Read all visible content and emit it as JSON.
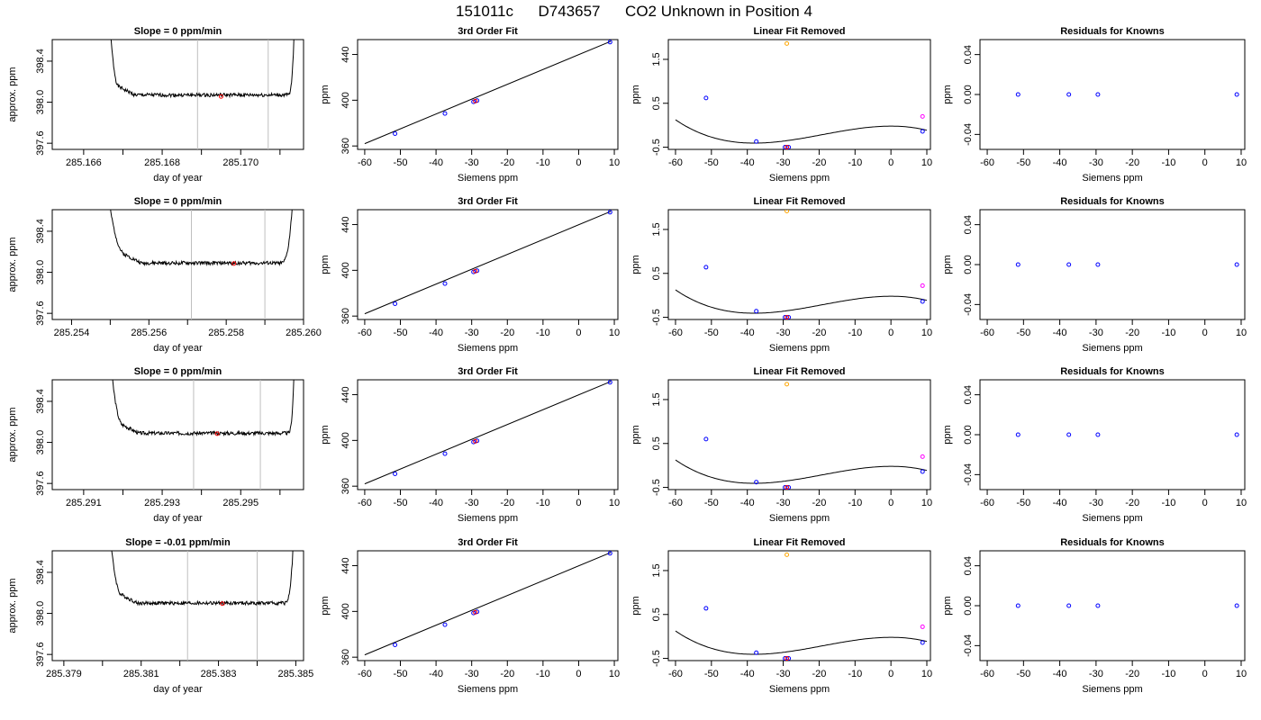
{
  "figure": {
    "title_parts": [
      "151011c",
      "D743657",
      "CO2 Unknown in Position  4"
    ],
    "colors": {
      "known": "#0000ff",
      "unknown": "#ff0000",
      "ref_low": "#ffa500",
      "ref_high": "#ff00ff",
      "line": "#000000",
      "marker_line": "#bebebe"
    }
  },
  "chart_data": [
    {
      "row": 0,
      "col": 0,
      "type": "line",
      "title": "Slope =  0  ppm/min",
      "xlabel": "day of year",
      "ylabel": "approx. ppm",
      "xlim": [
        285.1652,
        285.1716
      ],
      "ylim": [
        397.54,
        398.61
      ],
      "xticks": [
        285.166,
        285.167,
        285.168,
        285.169,
        285.17,
        285.171
      ],
      "xtick_labels": [
        "285.166",
        "",
        "285.168",
        "",
        "285.170",
        ""
      ],
      "yticks": [
        397.6,
        398.0,
        398.4
      ],
      "ytick_labels": [
        "397.6",
        "398.0",
        "398.4"
      ],
      "x_start": 285.1666,
      "x_end": 285.1714,
      "plateau_start": 285.1669,
      "plateau_end": 285.1712,
      "level": 398.07,
      "seed": 1,
      "markers_v": [
        285.1689,
        285.1707
      ],
      "highlight": {
        "x": 285.1695,
        "y": 398.055
      }
    },
    {
      "row": 0,
      "col": 1,
      "type": "line",
      "title": "3rd Order Fit",
      "xlabel": "Siemens ppm",
      "ylabel": "ppm",
      "xlim": [
        -62,
        11
      ],
      "ylim": [
        357,
        453
      ],
      "xticks": [
        -60,
        -50,
        -40,
        -30,
        -20,
        -10,
        0,
        10
      ],
      "yticks": [
        360,
        400,
        440
      ],
      "fit_line": [
        [
          -60,
          362
        ],
        [
          9,
          451.5
        ]
      ],
      "points": [
        {
          "x": -51.5,
          "y": 370.8,
          "c": "known"
        },
        {
          "x": -37.5,
          "y": 388.4,
          "c": "known"
        },
        {
          "x": -29.5,
          "y": 398.6,
          "c": "known"
        },
        {
          "x": -28.5,
          "y": 399.7,
          "c": "known"
        },
        {
          "x": -29,
          "y": 399.2,
          "c": "unknown"
        },
        {
          "x": 8.8,
          "y": 450.8,
          "c": "known"
        }
      ]
    },
    {
      "row": 0,
      "col": 2,
      "type": "line",
      "title": "Linear Fit Removed",
      "xlabel": "Siemens ppm",
      "ylabel": "ppm",
      "xlim": [
        -62,
        11
      ],
      "ylim": [
        -0.55,
        1.95
      ],
      "xticks": [
        -60,
        -50,
        -40,
        -30,
        -20,
        -10,
        0,
        10
      ],
      "yticks": [
        -0.5,
        0.5,
        1.5
      ],
      "cubic": {
        "a": -1.4e-05,
        "b": -0.0008,
        "c": 0.0,
        "d": -0.02,
        "x_from": -60,
        "x_to": 10
      },
      "points": [
        {
          "x": -51.5,
          "y": 0.62,
          "c": "known"
        },
        {
          "x": -37.5,
          "y": -0.37,
          "c": "known"
        },
        {
          "x": -29.5,
          "y": -0.5,
          "c": "known"
        },
        {
          "x": -28.5,
          "y": -0.5,
          "c": "known"
        },
        {
          "x": -29,
          "y": -0.5,
          "c": "unknown"
        },
        {
          "x": -29,
          "y": 1.86,
          "c": "ref_low"
        },
        {
          "x": 8.8,
          "y": 0.2,
          "c": "ref_high"
        },
        {
          "x": 8.8,
          "y": -0.14,
          "c": "known"
        }
      ]
    },
    {
      "row": 0,
      "col": 3,
      "type": "scatter",
      "title": "Residuals for Knowns",
      "xlabel": "Siemens ppm",
      "ylabel": "ppm",
      "xlim": [
        -62,
        11
      ],
      "ylim": [
        -0.055,
        0.055
      ],
      "xticks": [
        -60,
        -50,
        -40,
        -30,
        -20,
        -10,
        0,
        10
      ],
      "yticks": [
        -0.04,
        0.0,
        0.04
      ],
      "ytick_labels": [
        "-0.04",
        "0.00",
        "0.04"
      ],
      "points": [
        {
          "x": -51.5,
          "y": 0,
          "c": "known"
        },
        {
          "x": -37.5,
          "y": 0,
          "c": "known"
        },
        {
          "x": -29.5,
          "y": 0,
          "c": "known"
        },
        {
          "x": 8.8,
          "y": 0,
          "c": "known"
        }
      ]
    },
    {
      "row": 1,
      "col": 0,
      "type": "line",
      "title": "Slope =  0  ppm/min",
      "xlabel": "day of year",
      "ylabel": "approx. ppm",
      "xlim": [
        285.2535,
        285.26
      ],
      "ylim": [
        397.54,
        398.61
      ],
      "xticks": [
        285.254,
        285.255,
        285.256,
        285.257,
        285.258,
        285.259,
        285.26
      ],
      "xtick_labels": [
        "285.254",
        "",
        "285.256",
        "",
        "285.258",
        "",
        "285.260"
      ],
      "yticks": [
        397.6,
        398.0,
        398.4
      ],
      "ytick_labels": [
        "397.6",
        "398.0",
        "398.4"
      ],
      "x_start": 285.2548,
      "x_end": 285.2598,
      "plateau_start": 285.2554,
      "plateau_end": 285.2594,
      "level": 398.09,
      "seed": 2,
      "markers_v": [
        285.2571,
        285.259
      ],
      "highlight": {
        "x": 285.2582,
        "y": 398.085
      }
    },
    {
      "row": 1,
      "col": 1,
      "type": "line",
      "title": "3rd Order Fit",
      "xlabel": "Siemens ppm",
      "ylabel": "ppm",
      "xlim": [
        -62,
        11
      ],
      "ylim": [
        357,
        453
      ],
      "xticks": [
        -60,
        -50,
        -40,
        -30,
        -20,
        -10,
        0,
        10
      ],
      "yticks": [
        360,
        400,
        440
      ],
      "fit_line": [
        [
          -60,
          362
        ],
        [
          9,
          451.5
        ]
      ],
      "points": [
        {
          "x": -51.5,
          "y": 370.8,
          "c": "known"
        },
        {
          "x": -37.5,
          "y": 388.4,
          "c": "known"
        },
        {
          "x": -29.5,
          "y": 398.6,
          "c": "known"
        },
        {
          "x": -28.5,
          "y": 399.7,
          "c": "known"
        },
        {
          "x": -29,
          "y": 399.2,
          "c": "unknown"
        },
        {
          "x": 8.8,
          "y": 450.8,
          "c": "known"
        }
      ]
    },
    {
      "row": 1,
      "col": 2,
      "type": "line",
      "title": "Linear Fit Removed",
      "xlabel": "Siemens ppm",
      "ylabel": "ppm",
      "xlim": [
        -62,
        11
      ],
      "ylim": [
        -0.55,
        1.95
      ],
      "xticks": [
        -60,
        -50,
        -40,
        -30,
        -20,
        -10,
        0,
        10
      ],
      "yticks": [
        -0.5,
        0.5,
        1.5
      ],
      "cubic": {
        "a": -1.4e-05,
        "b": -0.0008,
        "c": 0.0,
        "d": -0.02,
        "x_from": -60,
        "x_to": 10
      },
      "points": [
        {
          "x": -51.5,
          "y": 0.64,
          "c": "known"
        },
        {
          "x": -37.5,
          "y": -0.36,
          "c": "known"
        },
        {
          "x": -29.5,
          "y": -0.5,
          "c": "known"
        },
        {
          "x": -28.5,
          "y": -0.5,
          "c": "known"
        },
        {
          "x": -29,
          "y": -0.5,
          "c": "unknown"
        },
        {
          "x": -29,
          "y": 1.92,
          "c": "ref_low"
        },
        {
          "x": 8.8,
          "y": 0.22,
          "c": "ref_high"
        },
        {
          "x": 8.8,
          "y": -0.14,
          "c": "known"
        }
      ]
    },
    {
      "row": 1,
      "col": 3,
      "type": "scatter",
      "title": "Residuals for Knowns",
      "xlabel": "Siemens ppm",
      "ylabel": "ppm",
      "xlim": [
        -62,
        11
      ],
      "ylim": [
        -0.055,
        0.055
      ],
      "xticks": [
        -60,
        -50,
        -40,
        -30,
        -20,
        -10,
        0,
        10
      ],
      "yticks": [
        -0.04,
        0.0,
        0.04
      ],
      "ytick_labels": [
        "-0.04",
        "0.00",
        "0.04"
      ],
      "points": [
        {
          "x": -51.5,
          "y": 0,
          "c": "known"
        },
        {
          "x": -37.5,
          "y": 0,
          "c": "known"
        },
        {
          "x": -29.5,
          "y": 0,
          "c": "known"
        },
        {
          "x": 8.8,
          "y": 0,
          "c": "known"
        }
      ]
    },
    {
      "row": 2,
      "col": 0,
      "type": "line",
      "title": "Slope =  0  ppm/min",
      "xlabel": "day of year",
      "ylabel": "approx. ppm",
      "xlim": [
        285.2902,
        285.2966
      ],
      "ylim": [
        397.54,
        398.61
      ],
      "xticks": [
        285.291,
        285.292,
        285.293,
        285.294,
        285.295,
        285.296
      ],
      "xtick_labels": [
        "285.291",
        "",
        "285.293",
        "",
        "285.295",
        ""
      ],
      "yticks": [
        397.6,
        398.0,
        398.4
      ],
      "ytick_labels": [
        "397.6",
        "398.0",
        "398.4"
      ],
      "x_start": 285.2916,
      "x_end": 285.2964,
      "plateau_start": 285.292,
      "plateau_end": 285.2962,
      "level": 398.09,
      "seed": 3,
      "markers_v": [
        285.2938,
        285.2955
      ],
      "highlight": {
        "x": 285.2944,
        "y": 398.085
      }
    },
    {
      "row": 2,
      "col": 1,
      "type": "line",
      "title": "3rd Order Fit",
      "xlabel": "Siemens ppm",
      "ylabel": "ppm",
      "xlim": [
        -62,
        11
      ],
      "ylim": [
        357,
        453
      ],
      "xticks": [
        -60,
        -50,
        -40,
        -30,
        -20,
        -10,
        0,
        10
      ],
      "yticks": [
        360,
        400,
        440
      ],
      "fit_line": [
        [
          -60,
          362
        ],
        [
          9,
          451.5
        ]
      ],
      "points": [
        {
          "x": -51.5,
          "y": 370.8,
          "c": "known"
        },
        {
          "x": -37.5,
          "y": 388.4,
          "c": "known"
        },
        {
          "x": -29.5,
          "y": 398.6,
          "c": "known"
        },
        {
          "x": -28.5,
          "y": 399.7,
          "c": "known"
        },
        {
          "x": -29,
          "y": 399.2,
          "c": "unknown"
        },
        {
          "x": 8.8,
          "y": 450.8,
          "c": "known"
        }
      ]
    },
    {
      "row": 2,
      "col": 2,
      "type": "line",
      "title": "Linear Fit Removed",
      "xlabel": "Siemens ppm",
      "ylabel": "ppm",
      "xlim": [
        -62,
        11
      ],
      "ylim": [
        -0.55,
        1.95
      ],
      "xticks": [
        -60,
        -50,
        -40,
        -30,
        -20,
        -10,
        0,
        10
      ],
      "yticks": [
        -0.5,
        0.5,
        1.5
      ],
      "cubic": {
        "a": -1.4e-05,
        "b": -0.0008,
        "c": 0.0,
        "d": -0.02,
        "x_from": -60,
        "x_to": 10
      },
      "points": [
        {
          "x": -51.5,
          "y": 0.6,
          "c": "known"
        },
        {
          "x": -37.5,
          "y": -0.38,
          "c": "known"
        },
        {
          "x": -29.5,
          "y": -0.5,
          "c": "known"
        },
        {
          "x": -28.5,
          "y": -0.5,
          "c": "known"
        },
        {
          "x": -29,
          "y": -0.5,
          "c": "unknown"
        },
        {
          "x": -29,
          "y": 1.85,
          "c": "ref_low"
        },
        {
          "x": 8.8,
          "y": 0.2,
          "c": "ref_high"
        },
        {
          "x": 8.8,
          "y": -0.14,
          "c": "known"
        }
      ]
    },
    {
      "row": 2,
      "col": 3,
      "type": "scatter",
      "title": "Residuals for Knowns",
      "xlabel": "Siemens ppm",
      "ylabel": "ppm",
      "xlim": [
        -62,
        11
      ],
      "ylim": [
        -0.055,
        0.055
      ],
      "xticks": [
        -60,
        -50,
        -40,
        -30,
        -20,
        -10,
        0,
        10
      ],
      "yticks": [
        -0.04,
        0.0,
        0.04
      ],
      "ytick_labels": [
        "-0.04",
        "0.00",
        "0.04"
      ],
      "points": [
        {
          "x": -51.5,
          "y": 0,
          "c": "known"
        },
        {
          "x": -37.5,
          "y": 0,
          "c": "known"
        },
        {
          "x": -29.5,
          "y": 0,
          "c": "known"
        },
        {
          "x": 8.8,
          "y": 0,
          "c": "known"
        }
      ]
    },
    {
      "row": 3,
      "col": 0,
      "type": "line",
      "title": "Slope =  -0.01  ppm/min",
      "xlabel": "day of year",
      "ylabel": "approx. ppm",
      "xlim": [
        285.3787,
        285.3852
      ],
      "ylim": [
        397.54,
        398.61
      ],
      "xticks": [
        285.379,
        285.38,
        285.381,
        285.382,
        285.383,
        285.384,
        285.385
      ],
      "xtick_labels": [
        "285.379",
        "",
        "285.381",
        "",
        "285.383",
        "",
        "285.385"
      ],
      "yticks": [
        397.6,
        398.0,
        398.4
      ],
      "ytick_labels": [
        "397.6",
        "398.0",
        "398.4"
      ],
      "x_start": 285.3801,
      "x_end": 285.385,
      "plateau_start": 285.3805,
      "plateau_end": 285.3847,
      "level": 398.1,
      "seed": 4,
      "markers_v": [
        285.3822,
        285.384
      ],
      "highlight": {
        "x": 285.3831,
        "y": 398.095
      }
    },
    {
      "row": 3,
      "col": 1,
      "type": "line",
      "title": "3rd Order Fit",
      "xlabel": "Siemens ppm",
      "ylabel": "ppm",
      "xlim": [
        -62,
        11
      ],
      "ylim": [
        357,
        453
      ],
      "xticks": [
        -60,
        -50,
        -40,
        -30,
        -20,
        -10,
        0,
        10
      ],
      "yticks": [
        360,
        400,
        440
      ],
      "fit_line": [
        [
          -60,
          362
        ],
        [
          9,
          451.5
        ]
      ],
      "points": [
        {
          "x": -51.5,
          "y": 370.8,
          "c": "known"
        },
        {
          "x": -37.5,
          "y": 388.4,
          "c": "known"
        },
        {
          "x": -29.5,
          "y": 398.6,
          "c": "known"
        },
        {
          "x": -28.5,
          "y": 399.7,
          "c": "known"
        },
        {
          "x": -29,
          "y": 399.2,
          "c": "unknown"
        },
        {
          "x": 8.8,
          "y": 450.8,
          "c": "known"
        }
      ]
    },
    {
      "row": 3,
      "col": 2,
      "type": "line",
      "title": "Linear Fit Removed",
      "xlabel": "Siemens ppm",
      "ylabel": "ppm",
      "xlim": [
        -62,
        11
      ],
      "ylim": [
        -0.55,
        1.95
      ],
      "xticks": [
        -60,
        -50,
        -40,
        -30,
        -20,
        -10,
        0,
        10
      ],
      "yticks": [
        -0.5,
        0.5,
        1.5
      ],
      "cubic": {
        "a": -1.4e-05,
        "b": -0.0008,
        "c": 0.0,
        "d": -0.02,
        "x_from": -60,
        "x_to": 10
      },
      "points": [
        {
          "x": -51.5,
          "y": 0.64,
          "c": "known"
        },
        {
          "x": -37.5,
          "y": -0.37,
          "c": "known"
        },
        {
          "x": -29.5,
          "y": -0.5,
          "c": "known"
        },
        {
          "x": -28.5,
          "y": -0.5,
          "c": "known"
        },
        {
          "x": -29,
          "y": -0.5,
          "c": "unknown"
        },
        {
          "x": -29,
          "y": 1.86,
          "c": "ref_low"
        },
        {
          "x": 8.8,
          "y": 0.22,
          "c": "ref_high"
        },
        {
          "x": 8.8,
          "y": -0.14,
          "c": "known"
        }
      ]
    },
    {
      "row": 3,
      "col": 3,
      "type": "scatter",
      "title": "Residuals for Knowns",
      "xlabel": "Siemens ppm",
      "ylabel": "ppm",
      "xlim": [
        -62,
        11
      ],
      "ylim": [
        -0.055,
        0.055
      ],
      "xticks": [
        -60,
        -50,
        -40,
        -30,
        -20,
        -10,
        0,
        10
      ],
      "yticks": [
        -0.04,
        0.0,
        0.04
      ],
      "ytick_labels": [
        "-0.04",
        "0.00",
        "0.04"
      ],
      "points": [
        {
          "x": -51.5,
          "y": 0,
          "c": "known"
        },
        {
          "x": -37.5,
          "y": 0,
          "c": "known"
        },
        {
          "x": -29.5,
          "y": 0,
          "c": "known"
        },
        {
          "x": 8.8,
          "y": 0,
          "c": "known"
        }
      ]
    }
  ]
}
